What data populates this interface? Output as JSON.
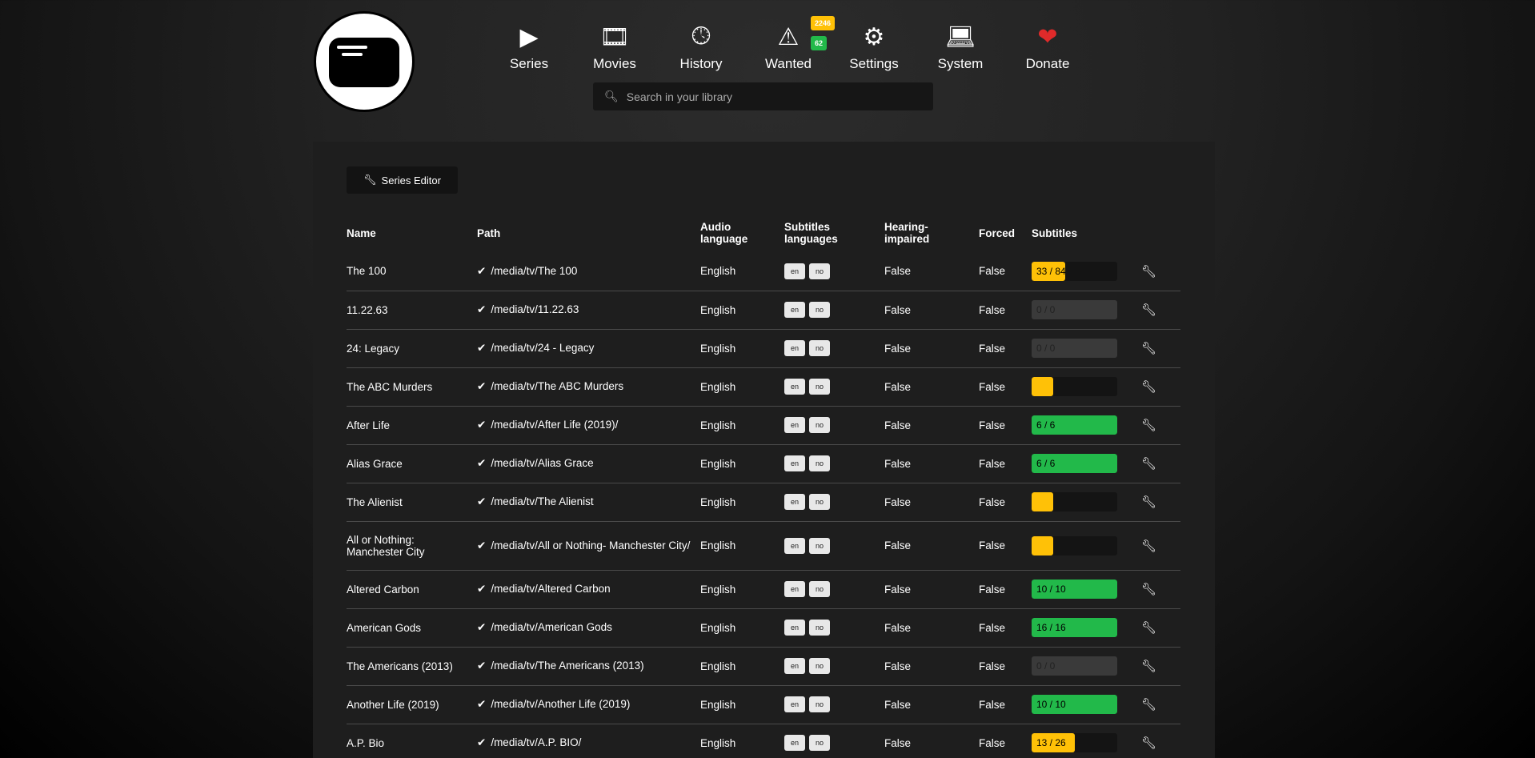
{
  "nav": [
    {
      "label": "Series",
      "icon": "play-icon"
    },
    {
      "label": "Movies",
      "icon": "film-icon"
    },
    {
      "label": "History",
      "icon": "clock-icon"
    },
    {
      "label": "Wanted",
      "icon": "warning-icon"
    },
    {
      "label": "Settings",
      "icon": "gears-icon"
    },
    {
      "label": "System",
      "icon": "laptop-icon"
    },
    {
      "label": "Donate",
      "icon": "heart-icon"
    }
  ],
  "badges": {
    "series_wanted": "2246",
    "movies_wanted": "62"
  },
  "search": {
    "placeholder": "Search in your library"
  },
  "toolbar": {
    "series_editor": "Series Editor"
  },
  "table": {
    "headers": {
      "name": "Name",
      "path": "Path",
      "audio": "Audio language",
      "subs": "Subtitles languages",
      "hi": "Hearing-impaired",
      "forced": "Forced",
      "subtitles": "Subtitles"
    },
    "rows": [
      {
        "name": "The 100",
        "path": "/media/tv/The 100",
        "audio": "English",
        "langs": [
          "en",
          "no"
        ],
        "hi": "False",
        "forced": "False",
        "progress": "33 / 84",
        "fraction": 0.39
      },
      {
        "name": "11.22.63",
        "path": "/media/tv/11.22.63",
        "audio": "English",
        "langs": [
          "en",
          "no"
        ],
        "hi": "False",
        "forced": "False",
        "progress": "0 / 0",
        "fraction": 0
      },
      {
        "name": "24: Legacy",
        "path": "/media/tv/24 - Legacy",
        "audio": "English",
        "langs": [
          "en",
          "no"
        ],
        "hi": "False",
        "forced": "False",
        "progress": "0 / 0",
        "fraction": 0
      },
      {
        "name": "The ABC Murders",
        "path": "/media/tv/The ABC Murders",
        "audio": "English",
        "langs": [
          "en",
          "no"
        ],
        "hi": "False",
        "forced": "False",
        "progress": "",
        "fraction": 0.25
      },
      {
        "name": "After Life",
        "path": "/media/tv/After Life (2019)/",
        "audio": "English",
        "langs": [
          "en",
          "no"
        ],
        "hi": "False",
        "forced": "False",
        "progress": "6 / 6",
        "fraction": 1
      },
      {
        "name": "Alias Grace",
        "path": "/media/tv/Alias Grace",
        "audio": "English",
        "langs": [
          "en",
          "no"
        ],
        "hi": "False",
        "forced": "False",
        "progress": "6 / 6",
        "fraction": 1
      },
      {
        "name": "The Alienist",
        "path": "/media/tv/The Alienist",
        "audio": "English",
        "langs": [
          "en",
          "no"
        ],
        "hi": "False",
        "forced": "False",
        "progress": "",
        "fraction": 0.25
      },
      {
        "name": "All or Nothing: Manchester City",
        "path": "/media/tv/All or Nothing- Manchester City/",
        "audio": "English",
        "langs": [
          "en",
          "no"
        ],
        "hi": "False",
        "forced": "False",
        "progress": "",
        "fraction": 0.25
      },
      {
        "name": "Altered Carbon",
        "path": "/media/tv/Altered Carbon",
        "audio": "English",
        "langs": [
          "en",
          "no"
        ],
        "hi": "False",
        "forced": "False",
        "progress": "10 / 10",
        "fraction": 1
      },
      {
        "name": "American Gods",
        "path": "/media/tv/American Gods",
        "audio": "English",
        "langs": [
          "en",
          "no"
        ],
        "hi": "False",
        "forced": "False",
        "progress": "16 / 16",
        "fraction": 1
      },
      {
        "name": "The Americans (2013)",
        "path": "/media/tv/The Americans (2013)",
        "audio": "English",
        "langs": [
          "en",
          "no"
        ],
        "hi": "False",
        "forced": "False",
        "progress": "0 / 0",
        "fraction": 0
      },
      {
        "name": "Another Life (2019)",
        "path": "/media/tv/Another Life (2019)",
        "audio": "English",
        "langs": [
          "en",
          "no"
        ],
        "hi": "False",
        "forced": "False",
        "progress": "10 / 10",
        "fraction": 1
      },
      {
        "name": "A.P. Bio",
        "path": "/media/tv/A.P. BIO/",
        "audio": "English",
        "langs": [
          "en",
          "no"
        ],
        "hi": "False",
        "forced": "False",
        "progress": "13 / 26",
        "fraction": 0.5
      }
    ]
  },
  "colors": {
    "complete": "#22b94a",
    "partial": "#ffc107",
    "heart": "#e02a2a",
    "empty": "#3a3a3a"
  }
}
